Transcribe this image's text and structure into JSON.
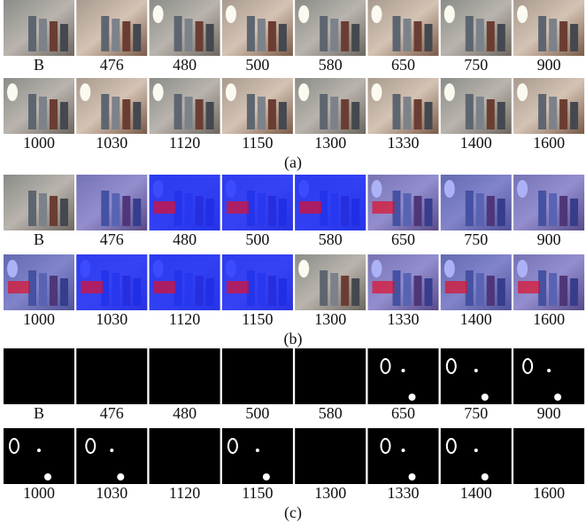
{
  "panels": [
    {
      "caption": "(a)",
      "rows": [
        [
          "B",
          "476",
          "480",
          "500",
          "580",
          "650",
          "750",
          "900"
        ],
        [
          "1000",
          "1030",
          "1120",
          "1150",
          "1300",
          "1330",
          "1400",
          "1600"
        ]
      ]
    },
    {
      "caption": "(b)",
      "rows": [
        [
          "B",
          "476",
          "480",
          "500",
          "580",
          "650",
          "750",
          "900"
        ],
        [
          "1000",
          "1030",
          "1120",
          "1150",
          "1300",
          "1330",
          "1400",
          "1600"
        ]
      ]
    },
    {
      "caption": "(c)",
      "rows": [
        [
          "B",
          "476",
          "480",
          "500",
          "580",
          "650",
          "750",
          "900"
        ],
        [
          "1000",
          "1030",
          "1120",
          "1150",
          "1300",
          "1330",
          "1400",
          "1600"
        ]
      ]
    }
  ]
}
